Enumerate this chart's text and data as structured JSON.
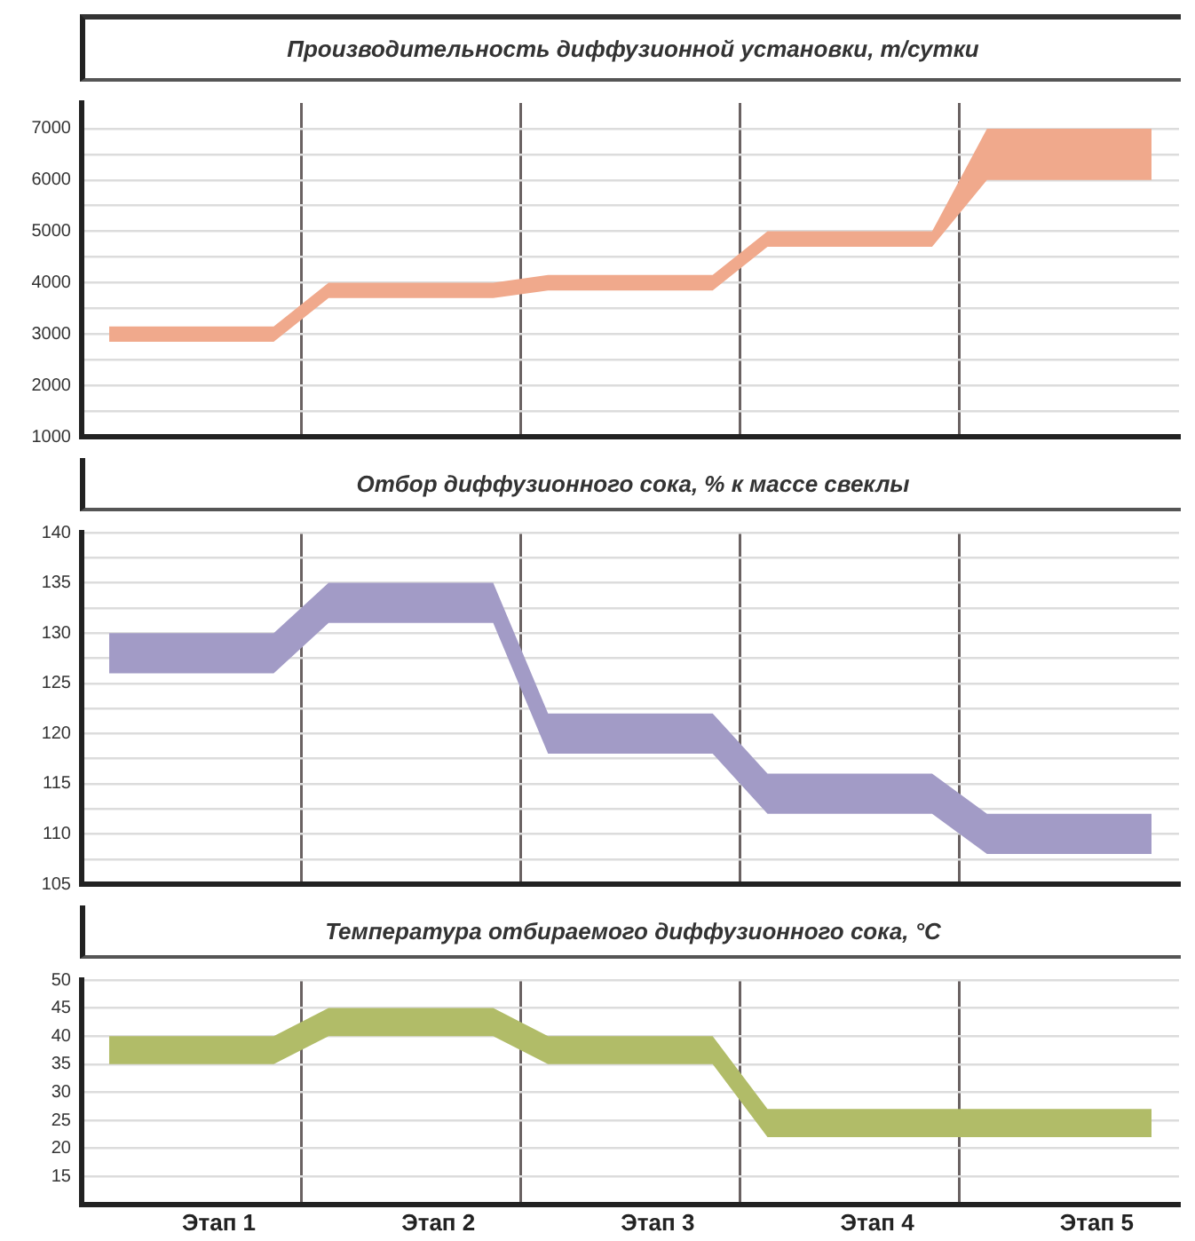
{
  "chart_data": [
    {
      "type": "line",
      "title": "Производительность диффузионной установки, т/сутки",
      "categories": [
        null,
        null,
        null,
        null,
        null,
        null,
        null,
        null,
        null,
        null,
        null,
        null,
        null,
        null,
        null,
        null,
        null,
        null,
        null,
        null
      ],
      "tick_labels": "y",
      "grid": true,
      "legend": false,
      "marker": "none",
      "ylim": [
        1000,
        7500
      ],
      "yticks": [
        1000,
        {
          "value": 1500,
          "label": null
        },
        2000,
        {
          "value": 2500,
          "label": null
        },
        3000,
        {
          "value": 3500,
          "label": null
        },
        4000,
        {
          "value": 4500,
          "label": null
        },
        5000,
        {
          "value": 5500,
          "label": null
        },
        6000,
        {
          "value": 6500,
          "label": null
        },
        7000
      ],
      "series": [
        {
          "color": "#f0a98c",
          "values": [
            null,
            null,
            null,
            null,
            null,
            null,
            null,
            null,
            null,
            null,
            null,
            null,
            null,
            null,
            null,
            null,
            null,
            null,
            null,
            null
          ],
          "lower": [
            2850,
            2850,
            2850,
            2850,
            3700,
            3700,
            3700,
            3700,
            3850,
            3850,
            3850,
            3850,
            4700,
            4700,
            4700,
            4700,
            6000,
            6000,
            6000,
            6000
          ],
          "upper": [
            3150,
            3150,
            3150,
            3150,
            4000,
            4000,
            4000,
            4000,
            4150,
            4150,
            4150,
            4150,
            5000,
            5000,
            5000,
            5000,
            7000,
            7000,
            7000,
            7000
          ]
        }
      ]
    },
    {
      "type": "line",
      "title": "Отбор диффузионного сока, % к массе свеклы",
      "categories": [
        null,
        null,
        null,
        null,
        null,
        null,
        null,
        null,
        null,
        null,
        null,
        null,
        null,
        null,
        null,
        null,
        null,
        null,
        null,
        null
      ],
      "tick_labels": "y",
      "grid": true,
      "legend": false,
      "marker": "none",
      "ylim": [
        105,
        140
      ],
      "yticks": [
        105,
        {
          "value": 107.5,
          "label": null
        },
        110,
        {
          "value": 112.5,
          "label": null
        },
        115,
        {
          "value": 117.5,
          "label": null
        },
        120,
        {
          "value": 122.5,
          "label": null
        },
        125,
        {
          "value": 127.5,
          "label": null
        },
        130,
        {
          "value": 132.5,
          "label": null
        },
        135,
        {
          "value": 137.5,
          "label": null
        },
        140
      ],
      "series": [
        {
          "color": "#a29bc6",
          "values": [
            null,
            null,
            null,
            null,
            null,
            null,
            null,
            null,
            null,
            null,
            null,
            null,
            null,
            null,
            null,
            null,
            null,
            null,
            null,
            null
          ],
          "lower": [
            126,
            126,
            126,
            126,
            131,
            131,
            131,
            131,
            118,
            118,
            118,
            118,
            112,
            112,
            112,
            112,
            108,
            108,
            108,
            108
          ],
          "upper": [
            130,
            130,
            130,
            130,
            135,
            135,
            135,
            135,
            122,
            122,
            122,
            122,
            116,
            116,
            116,
            116,
            112,
            112,
            112,
            112
          ]
        }
      ]
    },
    {
      "type": "line",
      "title": "Температура отбираемого диффузионного сока, °C",
      "categories": [
        null,
        null,
        "Этап 1",
        null,
        null,
        null,
        "Этап 2",
        null,
        null,
        null,
        "Этап 3",
        null,
        null,
        null,
        "Этап 4",
        null,
        null,
        null,
        "Этап 5",
        null
      ],
      "grid": true,
      "legend": false,
      "marker": "none",
      "ylim": [
        10,
        50
      ],
      "yticks": [
        15,
        20,
        25,
        30,
        35,
        40,
        45,
        50
      ],
      "series": [
        {
          "color": "#b1bc68",
          "values": [
            null,
            null,
            null,
            null,
            null,
            null,
            null,
            null,
            null,
            null,
            null,
            null,
            null,
            null,
            null,
            null,
            null,
            null,
            null,
            null
          ],
          "lower": [
            35,
            35,
            35,
            35,
            40,
            40,
            40,
            40,
            35,
            35,
            35,
            35,
            22,
            22,
            22,
            22,
            22,
            22,
            22,
            22
          ],
          "upper": [
            40,
            40,
            40,
            40,
            45,
            45,
            45,
            45,
            40,
            40,
            40,
            40,
            27,
            27,
            27,
            27,
            27,
            27,
            27,
            27
          ]
        }
      ]
    }
  ]
}
